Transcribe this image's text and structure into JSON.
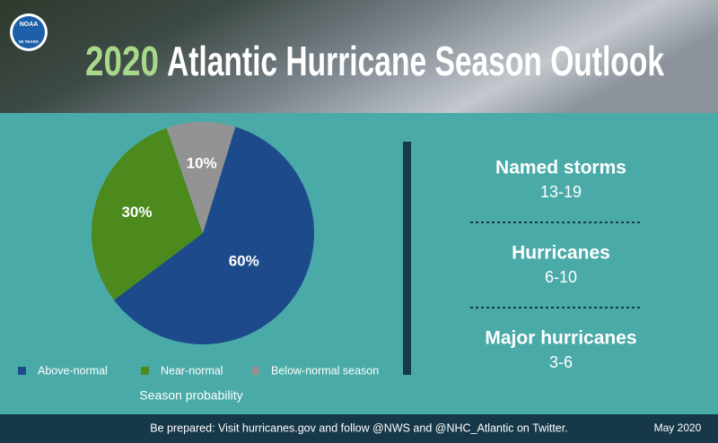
{
  "logo": {
    "text": "NOAA",
    "subtext": "50 YEARS"
  },
  "chart_data": {
    "type": "pie",
    "title_year": "2020",
    "title": "Atlantic Hurricane Season Outlook",
    "categories": [
      "Above-normal",
      "Near-normal",
      "Below-normal season"
    ],
    "values": [
      60,
      30,
      10
    ],
    "value_labels": [
      "60%",
      "30%",
      "10%"
    ],
    "colors": [
      "#1d4a8a",
      "#4c8a1e",
      "#939393"
    ],
    "caption": "Season probability",
    "legend": "bottom"
  },
  "stats": [
    {
      "label": "Named storms",
      "value": "13-19"
    },
    {
      "label": "Hurricanes",
      "value": "6-10"
    },
    {
      "label": "Major hurricanes",
      "value": "3-6"
    }
  ],
  "footer": {
    "text": "Be prepared: Visit hurricanes.gov and follow @NWS and @NHC_Atlantic on Twitter.",
    "date": "May 2020"
  }
}
